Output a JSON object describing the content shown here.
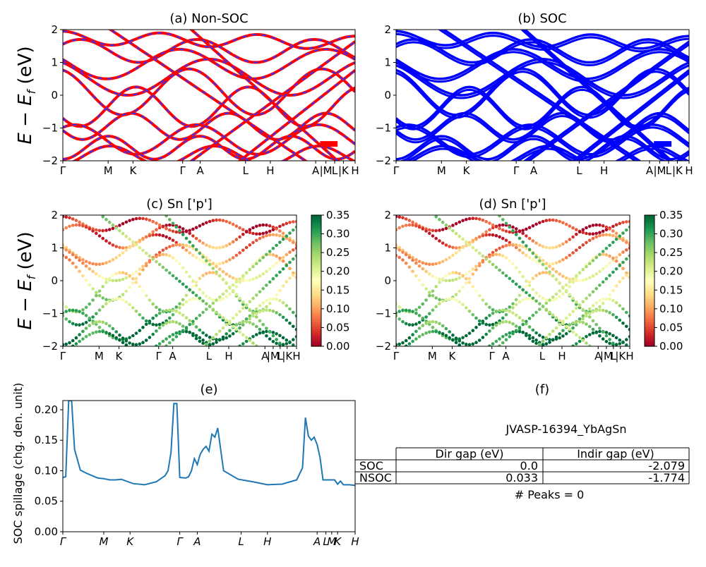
{
  "panels": {
    "a": {
      "title": "(a) Non-SOC"
    },
    "b": {
      "title": "(b) SOC"
    },
    "c": {
      "title": "(c)  Sn ['p']"
    },
    "d": {
      "title": "(d) Sn ['p']"
    },
    "e": {
      "title": "(e)"
    },
    "f": {
      "title": "(f)"
    }
  },
  "band_axis": {
    "ylabel": "E − E_f (eV)",
    "ylim": [
      -2,
      2
    ],
    "yticks": [
      "2",
      "1",
      "0",
      "−1",
      "−2"
    ],
    "kpath": [
      "Γ",
      "M",
      "K",
      "Γ",
      "A",
      "L",
      "H",
      "A",
      "|M",
      "L",
      "|K",
      "H"
    ],
    "kpos": [
      0,
      0.155,
      0.24,
      0.41,
      0.47,
      0.625,
      0.71,
      0.865,
      0.9,
      0.93,
      0.96,
      1.0
    ]
  },
  "colorbar": {
    "ticks": [
      "0.35",
      "0.30",
      "0.25",
      "0.20",
      "0.15",
      "0.10",
      "0.05",
      "0.00"
    ],
    "range": [
      0.0,
      0.35
    ],
    "colormap": "RdYlGn"
  },
  "colors": {
    "nonsoc_band": "#ff0000",
    "nonsoc_dash": "#3333ff",
    "soc_band": "#0000ff",
    "spillage_line": "#1f77b4"
  },
  "spillage": {
    "ylabel": "SOC spillage (chg. den. unit)",
    "yticks": [
      "0.20",
      "0.15",
      "0.10",
      "0.05",
      "0.00"
    ],
    "kpath": [
      "Γ",
      "M",
      "K",
      "Γ",
      "A",
      "L",
      "H",
      "A",
      "L",
      "M",
      "K",
      "H"
    ]
  },
  "info": {
    "material_id": "JVASP-16394_YbAgSn",
    "table": {
      "headers": [
        "",
        "Dir gap (eV)",
        "Indir gap (eV)"
      ],
      "rows": [
        [
          "SOC",
          "0.0",
          "-2.079"
        ],
        [
          "NSOC",
          "0.033",
          "-1.774"
        ]
      ]
    },
    "peaks": "# Peaks = 0"
  },
  "chart_data": [
    {
      "type": "line",
      "title": "(a) Non-SOC",
      "ylabel": "E − E_f (eV)",
      "ylim": [
        -2,
        2
      ],
      "x": [
        "Γ",
        "M",
        "K",
        "Γ",
        "A",
        "L",
        "H",
        "A",
        "M",
        "L",
        "K",
        "H"
      ],
      "series": [
        {
          "values": [
            1.8,
            1.55,
            1.3,
            1.2,
            1.85,
            1.1,
            1.7,
            1.9,
            1.6,
            1.7,
            1.5,
            1.3
          ]
        },
        {
          "values": [
            1.15,
            0.9,
            1.0,
            0.9,
            1.5,
            0.75,
            1.3,
            1.6,
            1.2,
            1.1,
            1.4,
            1.6
          ]
        },
        {
          "values": [
            0.4,
            0.6,
            0.45,
            0.75,
            1.1,
            0.35,
            1.0,
            1.3,
            0.8,
            0.9,
            0.6,
            0.9
          ]
        },
        {
          "values": [
            0.3,
            0.2,
            -0.6,
            0.1,
            0.2,
            -0.55,
            0.5,
            -0.85,
            -0.05,
            0.1,
            -0.2,
            0.1
          ]
        },
        {
          "values": [
            -0.9,
            -1.5,
            -1.6,
            -1.1,
            -0.9,
            -1.45,
            -0.55,
            -1.1,
            -1.4,
            -1.5,
            -1.45,
            -1.3
          ]
        },
        {
          "values": [
            -1.2,
            -1.7,
            -1.9,
            -1.6,
            -1.4,
            -1.8,
            -1.6,
            -1.8,
            -1.6,
            -1.7,
            -1.7,
            -1.6
          ]
        }
      ]
    },
    {
      "type": "line",
      "title": "(b) SOC",
      "ylim": [
        -2,
        2
      ],
      "x": [
        "Γ",
        "M",
        "K",
        "Γ",
        "A",
        "L",
        "H",
        "A",
        "M",
        "L",
        "K",
        "H"
      ],
      "series": [
        {
          "values": [
            1.8,
            1.55,
            1.3,
            1.2,
            1.85,
            1.1,
            1.7,
            1.9,
            1.6,
            1.7,
            1.5,
            1.3
          ]
        },
        {
          "values": [
            1.15,
            0.9,
            1.0,
            0.9,
            1.5,
            0.75,
            1.3,
            1.6,
            1.2,
            1.1,
            1.4,
            1.6
          ]
        },
        {
          "values": [
            0.4,
            0.6,
            0.45,
            0.75,
            1.1,
            0.35,
            1.0,
            1.3,
            0.8,
            0.9,
            0.6,
            0.9
          ]
        },
        {
          "values": [
            0.3,
            0.2,
            -0.6,
            0.1,
            0.2,
            -0.55,
            0.5,
            -0.85,
            -0.05,
            0.1,
            -0.2,
            0.1
          ]
        },
        {
          "values": [
            -0.9,
            -1.5,
            -1.6,
            -1.1,
            -0.9,
            -1.45,
            -0.55,
            -1.1,
            -1.4,
            -1.5,
            -1.45,
            -1.3
          ]
        },
        {
          "values": [
            -1.2,
            -1.7,
            -1.9,
            -1.6,
            -1.4,
            -1.8,
            -1.6,
            -1.8,
            -1.6,
            -1.7,
            -1.7,
            -1.6
          ]
        }
      ]
    },
    {
      "type": "scatter",
      "title": "(c)  Sn ['p']",
      "ylim": [
        -2,
        2
      ],
      "colorbar": [
        0.0,
        0.35
      ]
    },
    {
      "type": "scatter",
      "title": "(d) Sn ['p']",
      "ylim": [
        -2,
        2
      ],
      "colorbar": [
        0.0,
        0.35
      ]
    },
    {
      "type": "line",
      "title": "(e)",
      "ylabel": "SOC spillage (chg. den. unit)",
      "ylim": [
        0,
        0.215
      ],
      "x": [
        0.0,
        0.01,
        0.02,
        0.03,
        0.04,
        0.06,
        0.08,
        0.1,
        0.12,
        0.14,
        0.16,
        0.18,
        0.2,
        0.24,
        0.28,
        0.32,
        0.35,
        0.36,
        0.37,
        0.38,
        0.39,
        0.4,
        0.42,
        0.43,
        0.44,
        0.45,
        0.46,
        0.47,
        0.48,
        0.49,
        0.5,
        0.51,
        0.52,
        0.53,
        0.55,
        0.6,
        0.65,
        0.7,
        0.75,
        0.8,
        0.82,
        0.83,
        0.84,
        0.85,
        0.86,
        0.87,
        0.88,
        0.89,
        0.9,
        0.93,
        0.94,
        0.95,
        0.96,
        0.98,
        1.0
      ],
      "values": [
        0.089,
        0.09,
        0.215,
        0.215,
        0.135,
        0.101,
        0.096,
        0.092,
        0.088,
        0.087,
        0.085,
        0.085,
        0.086,
        0.079,
        0.077,
        0.082,
        0.092,
        0.1,
        0.13,
        0.21,
        0.21,
        0.089,
        0.088,
        0.09,
        0.1,
        0.12,
        0.11,
        0.127,
        0.135,
        0.14,
        0.132,
        0.16,
        0.155,
        0.17,
        0.1,
        0.086,
        0.082,
        0.077,
        0.078,
        0.085,
        0.105,
        0.187,
        0.157,
        0.15,
        0.155,
        0.143,
        0.122,
        0.085,
        0.085,
        0.085,
        0.078,
        0.083,
        0.077,
        0.077,
        0.076
      ]
    }
  ]
}
